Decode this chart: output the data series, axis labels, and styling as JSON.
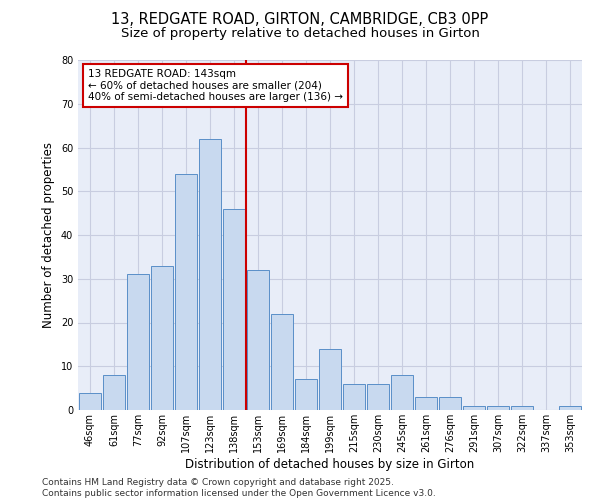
{
  "title_line1": "13, REDGATE ROAD, GIRTON, CAMBRIDGE, CB3 0PP",
  "title_line2": "Size of property relative to detached houses in Girton",
  "xlabel": "Distribution of detached houses by size in Girton",
  "ylabel": "Number of detached properties",
  "categories": [
    "46sqm",
    "61sqm",
    "77sqm",
    "92sqm",
    "107sqm",
    "123sqm",
    "138sqm",
    "153sqm",
    "169sqm",
    "184sqm",
    "199sqm",
    "215sqm",
    "230sqm",
    "245sqm",
    "261sqm",
    "276sqm",
    "291sqm",
    "307sqm",
    "322sqm",
    "337sqm",
    "353sqm"
  ],
  "values": [
    4,
    8,
    31,
    33,
    54,
    62,
    46,
    32,
    22,
    7,
    14,
    6,
    6,
    8,
    3,
    3,
    1,
    1,
    1,
    0,
    1
  ],
  "bar_color": "#c8d9ef",
  "bar_edge_color": "#5a8fc8",
  "vline_color": "#cc0000",
  "vline_x": 6.5,
  "annotation_text": "13 REDGATE ROAD: 143sqm\n← 60% of detached houses are smaller (204)\n40% of semi-detached houses are larger (136) →",
  "annotation_box_color": "#cc0000",
  "annotation_bg": "#ffffff",
  "ylim": [
    0,
    80
  ],
  "yticks": [
    0,
    10,
    20,
    30,
    40,
    50,
    60,
    70,
    80
  ],
  "grid_color": "#c8cde0",
  "background_color": "#e8edf8",
  "footer_text": "Contains HM Land Registry data © Crown copyright and database right 2025.\nContains public sector information licensed under the Open Government Licence v3.0.",
  "title_fontsize": 10.5,
  "subtitle_fontsize": 9.5,
  "axis_label_fontsize": 8.5,
  "tick_fontsize": 7,
  "annotation_fontsize": 7.5,
  "footer_fontsize": 6.5
}
